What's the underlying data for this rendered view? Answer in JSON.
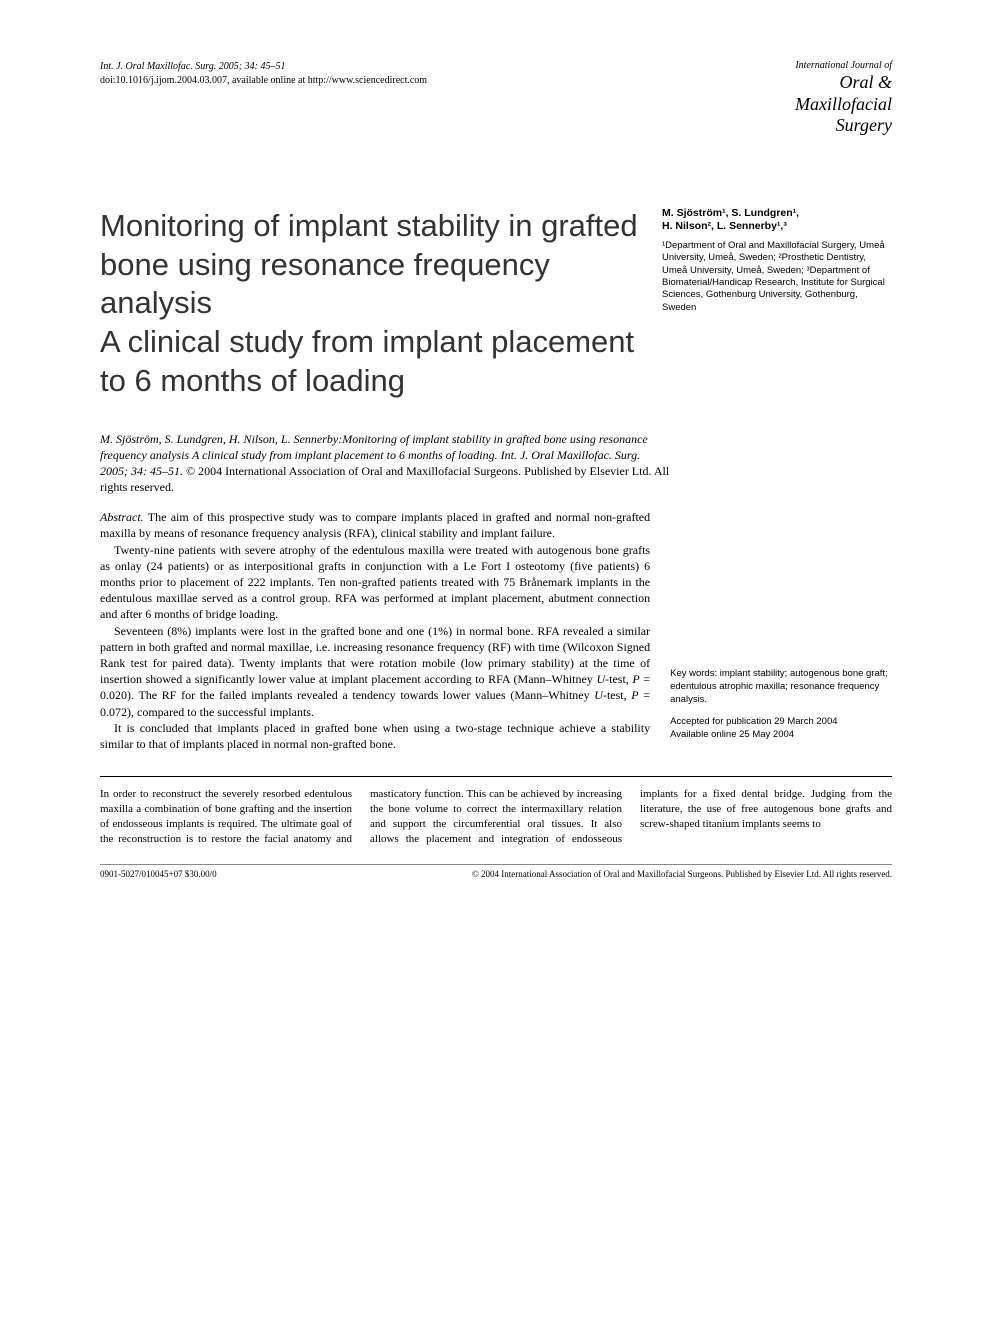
{
  "header": {
    "citation_line": "Int. J. Oral Maxillofac. Surg. 2005; 34: 45–51",
    "doi_line": "doi:10.1016/j.ijom.2004.03.007, available online at http://www.sciencedirect.com",
    "logo": {
      "line1": "International Journal of",
      "line2": "Oral &",
      "line3": "Maxillofacial",
      "line4": "Surgery"
    }
  },
  "title": {
    "main": "Monitoring of implant stability in grafted bone using resonance frequency analysis",
    "sub": "A clinical study from implant placement to 6 months of loading"
  },
  "authors": {
    "line1": "M. Sjöström¹, S. Lundgren¹,",
    "line2": "H. Nilson², L. Sennerby¹,³",
    "affiliations": "¹Department of Oral and Maxillofacial Surgery, Umeå University, Umeå, Sweden; ²Prosthetic Dentistry, Umeå University, Umeå, Sweden; ³Department of Biomaterial/Handicap Research, Institute for Surgical Sciences, Gothenburg University, Gothenburg, Sweden"
  },
  "citation": {
    "italic_part": "M. Sjöström, S. Lundgren, H. Nilson, L. Sennerby:Monitoring of implant stability in grafted bone using resonance frequency analysis A clinical study from implant placement to 6 months of loading. Int. J. Oral Maxillofac. Surg. 2005; 34: 45–51.",
    "rest": " © 2004 International Association of Oral and Maxillofacial Surgeons. Published by Elsevier Ltd. All rights reserved."
  },
  "abstract": {
    "label": "Abstract.",
    "p1": " The aim of this prospective study was to compare implants placed in grafted and normal non-grafted maxilla by means of resonance frequency analysis (RFA), clinical stability and implant failure.",
    "p2": "Twenty-nine patients with severe atrophy of the edentulous maxilla were treated with autogenous bone grafts as onlay (24 patients) or as interpositional grafts in conjunction with a Le Fort I osteotomy (five patients) 6 months prior to placement of 222 implants. Ten non-grafted patients treated with 75 Brånemark implants in the edentulous maxillae served as a control group. RFA was performed at implant placement, abutment connection and after 6 months of bridge loading.",
    "p3_a": "Seventeen (8%) implants were lost in the grafted bone and one (1%) in normal bone. RFA revealed a similar pattern in both grafted and normal maxillae, i.e. increasing resonance frequency (RF) with time (Wilcoxon Signed Rank test for paired data). Twenty implants that were rotation mobile (low primary stability) at the time of insertion showed a significantly lower value at implant placement according to RFA (Mann–Whitney ",
    "p3_b": "U",
    "p3_c": "-test, ",
    "p3_d": "P",
    "p3_e": " = 0.020). The RF for the failed implants revealed a tendency towards lower values (Mann–Whitney ",
    "p3_f": "U",
    "p3_g": "-test, ",
    "p3_h": "P",
    "p3_i": " = 0.072), compared to the successful implants.",
    "p4": "It is concluded that implants placed in grafted bone when using a two-stage technique achieve a stability similar to that of implants placed in normal non-grafted bone."
  },
  "keywords": {
    "text": "Key words: implant stability; autogenous bone graft; edentulous atrophic maxilla; resonance frequency analysis.",
    "accepted": "Accepted for publication 29 March 2004",
    "online": "Available online 25 May 2004"
  },
  "body": {
    "text": "In order to reconstruct the severely resorbed edentulous maxilla a combination of bone grafting and the insertion of endosseous implants is required. The ultimate goal of the reconstruction is to restore the facial anatomy and masticatory function. This can be achieved by increasing the bone volume to correct the intermaxillary relation and support the circumferential oral tissues. It also allows the placement and integration of endosseous implants for a fixed dental bridge. Judging from the literature, the use of free autogenous bone grafts and screw-shaped titanium implants seems to"
  },
  "footer": {
    "left": "0901-5027/010045+07 $30.00/0",
    "right": "© 2004 International Association of Oral and Maxillofacial Surgeons. Published by Elsevier Ltd. All rights reserved."
  },
  "colors": {
    "text": "#000000",
    "title": "#333333",
    "background": "#ffffff"
  },
  "fonts": {
    "body_family": "Georgia, Times New Roman, serif",
    "sans_family": "Arial, Helvetica, sans-serif",
    "title_size_pt": 31,
    "body_size_pt": 11,
    "abstract_size_pt": 12,
    "header_size_pt": 10
  }
}
